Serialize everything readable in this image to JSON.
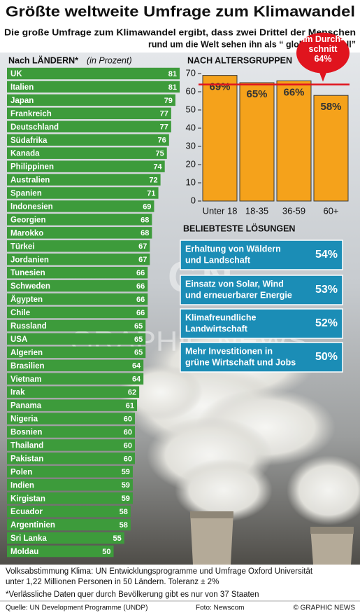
{
  "header": {
    "title": "Größte weltweite Umfrage zum Klimawandel",
    "subtitle": [
      "Die große Umfrage zum Klimawandel ergibt, dass zwei Drittel der Menschen",
      "rund um die Welt sehen ihn als “ globalen Notfall”"
    ]
  },
  "chart_data": [
    {
      "type": "bar",
      "orientation": "horizontal",
      "title": "Nach LÄNDERN*",
      "subtitle": "(in Prozent)",
      "categories": [
        "UK",
        "Italien",
        "Japan",
        "Frankreich",
        "Deutschland",
        "Südafrika",
        "Kanada",
        "Philippinen",
        "Australien",
        "Spanien",
        "Indonesien",
        "Georgien",
        "Marokko",
        "Türkei",
        "Jordanien",
        "Tunesien",
        "Schweden",
        "Ägypten",
        "Chile",
        "Russland",
        "USA",
        "Algerien",
        "Brasilien",
        "Vietnam",
        "Irak",
        "Panama",
        "Nigeria",
        "Bosnien",
        "Thailand",
        "Pakistan",
        "Polen",
        "Indien",
        "Kirgistan",
        "Ecuador",
        "Argentinien",
        "Sri Lanka",
        "Moldau"
      ],
      "values": [
        81,
        81,
        79,
        77,
        77,
        76,
        75,
        74,
        72,
        71,
        69,
        68,
        68,
        67,
        67,
        66,
        66,
        66,
        66,
        65,
        65,
        65,
        64,
        64,
        62,
        61,
        60,
        60,
        60,
        60,
        59,
        59,
        59,
        58,
        58,
        55,
        50
      ],
      "color": "#3d9b3b"
    },
    {
      "type": "bar",
      "orientation": "vertical",
      "title": "NACH ALTERSGRUPPEN",
      "categories": [
        "Unter 18",
        "18-35",
        "36-59",
        "60+"
      ],
      "values": [
        69,
        65,
        66,
        58
      ],
      "value_labels": [
        "69%",
        "65%",
        "66%",
        "58%"
      ],
      "color": "#f5a21b",
      "ylim": [
        0,
        70
      ],
      "yticks": [
        0,
        10,
        20,
        30,
        40,
        50,
        60,
        70
      ],
      "reference_line": {
        "value": 64,
        "label": "64%",
        "text": [
          "Im Durch-",
          "schnitt"
        ],
        "color": "#e0141e"
      }
    }
  ],
  "solutions": {
    "title": "BELIEBTESTE LÖSUNGEN",
    "items": [
      {
        "lines": [
          "Erhaltung von Wäldern",
          "und Landschaft"
        ],
        "percent": "54%"
      },
      {
        "lines": [
          "Einsatz von Solar, Wind",
          "und erneuerbarer Energie"
        ],
        "percent": "53%"
      },
      {
        "lines": [
          "Klimafreundliche",
          "Landwirtschaft"
        ],
        "percent": "52%"
      },
      {
        "lines": [
          "Mehr Investitionen in",
          "grüne Wirtschaft und Jobs"
        ],
        "percent": "50%"
      }
    ]
  },
  "watermark": {
    "logo": "GN",
    "text": "GRAPHIC NEWS"
  },
  "footer": {
    "note": [
      "Volksabstimmung Klima: UN Entwicklungsprogramme und Umfrage Oxford Universität",
      "unter 1,22 Millionen Personen in 50 Ländern. Toleranz ± 2%"
    ],
    "footnote": "*Verlässliche Daten quer durch Bevölkerung gibt es nur von 37 Staaten",
    "source": "Quelle: UN Development Programme (UNDP)",
    "photo": "Foto: Newscom",
    "credit": "© GRAPHIC NEWS"
  }
}
